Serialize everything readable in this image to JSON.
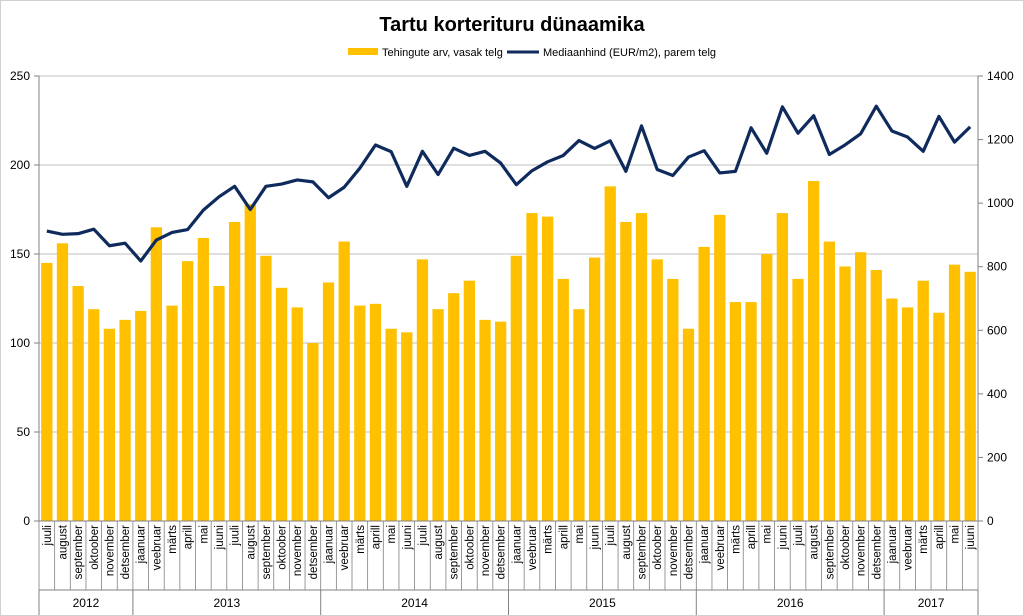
{
  "chart_data": {
    "type": "bar",
    "title": "Tartu korterituru dünaamika",
    "colors": {
      "bars": "#ffc000",
      "line": "#0f2a5c",
      "grid": "#bfbfbf",
      "axis": "#808080"
    },
    "left_axis": {
      "ylim": [
        0,
        250
      ],
      "ticks": [
        0,
        50,
        100,
        150,
        200,
        250
      ]
    },
    "right_axis": {
      "ylim": [
        0,
        1400
      ],
      "ticks": [
        0,
        200,
        400,
        600,
        800,
        1000,
        1200,
        1400
      ]
    },
    "grid": true,
    "legend_position": "top",
    "categories": [
      "juuli",
      "august",
      "september",
      "oktoober",
      "november",
      "detsember",
      "jaanuar",
      "veebruar",
      "märts",
      "aprill",
      "mai",
      "juuni",
      "juuli",
      "august",
      "september",
      "oktoober",
      "november",
      "detsember",
      "jaanuar",
      "veebruar",
      "märts",
      "aprill",
      "mai",
      "juuni",
      "juuli",
      "august",
      "september",
      "oktoober",
      "november",
      "detsember",
      "jaanuar",
      "veebruar",
      "märts",
      "aprill",
      "mai",
      "juuni",
      "juuli",
      "august",
      "september",
      "oktoober",
      "november",
      "detsember",
      "jaanuar",
      "veebruar",
      "märts",
      "aprill",
      "mai",
      "juuni",
      "juuli",
      "august",
      "september",
      "oktoober",
      "november",
      "detsember",
      "jaanuar",
      "veebruar",
      "märts",
      "aprill",
      "mai",
      "juuni"
    ],
    "years": [
      {
        "label": "2012",
        "count": 6
      },
      {
        "label": "2013",
        "count": 12
      },
      {
        "label": "2014",
        "count": 12
      },
      {
        "label": "2015",
        "count": 12
      },
      {
        "label": "2016",
        "count": 12
      },
      {
        "label": "2017",
        "count": 6
      }
    ],
    "series": [
      {
        "name": "Tehingute arv, vasak telg",
        "type": "bar",
        "axis": "left",
        "values": [
          145,
          156,
          132,
          119,
          108,
          113,
          118,
          165,
          121,
          146,
          159,
          132,
          168,
          178,
          149,
          131,
          120,
          100,
          134,
          157,
          121,
          122,
          108,
          106,
          147,
          119,
          128,
          135,
          113,
          112,
          149,
          173,
          171,
          136,
          119,
          148,
          188,
          168,
          173,
          147,
          136,
          108,
          154,
          172,
          123,
          123,
          150,
          173,
          136,
          191,
          157,
          143,
          151,
          141,
          125,
          120,
          135,
          117,
          144,
          140
        ]
      },
      {
        "name": "Mediaanhind (EUR/m2), parem telg",
        "type": "line",
        "axis": "right",
        "values": [
          912,
          902,
          904,
          918,
          866,
          874,
          818,
          884,
          908,
          917,
          978,
          1020,
          1053,
          980,
          1053,
          1060,
          1073,
          1067,
          1017,
          1050,
          1110,
          1183,
          1162,
          1053,
          1163,
          1090,
          1173,
          1150,
          1163,
          1126,
          1058,
          1102,
          1130,
          1150,
          1197,
          1172,
          1196,
          1100,
          1243,
          1106,
          1087,
          1145,
          1165,
          1095,
          1100,
          1237,
          1157,
          1303,
          1220,
          1275,
          1153,
          1183,
          1218,
          1305,
          1227,
          1208,
          1163,
          1273,
          1192,
          1240
        ]
      }
    ]
  }
}
